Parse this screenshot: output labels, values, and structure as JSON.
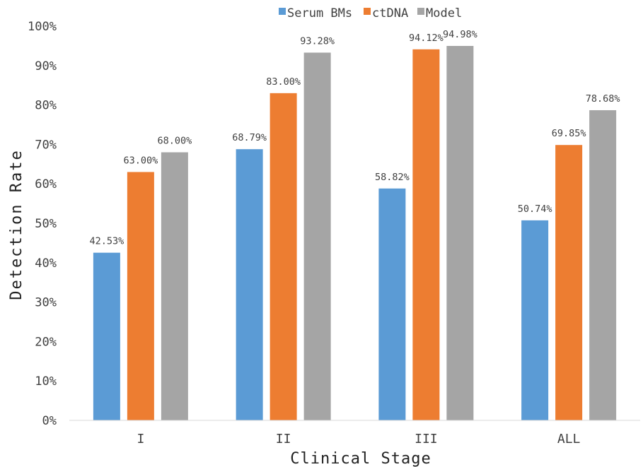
{
  "chart_data": {
    "type": "bar",
    "categories": [
      "I",
      "II",
      "III",
      "ALL"
    ],
    "series": [
      {
        "name": "Serum BMs",
        "values": [
          42.53,
          68.79,
          58.82,
          50.74
        ],
        "labels": [
          "42.53%",
          "68.79%",
          "58.82%",
          "50.74%"
        ],
        "color": "#5B9BD5"
      },
      {
        "name": "ctDNA",
        "values": [
          63.0,
          83.0,
          94.12,
          69.85
        ],
        "labels": [
          "63.00%",
          "83.00%",
          "94.12%",
          "69.85%"
        ],
        "color": "#ED7D31"
      },
      {
        "name": "Model",
        "values": [
          68.0,
          93.28,
          94.98,
          78.68
        ],
        "labels": [
          "68.00%",
          "93.28%",
          "94.98%",
          "78.68%"
        ],
        "color": "#A5A5A5"
      }
    ],
    "y_ticks": [
      "0%",
      "10%",
      "20%",
      "30%",
      "40%",
      "50%",
      "60%",
      "70%",
      "80%",
      "90%",
      "100%"
    ],
    "xlabel": "Clinical Stage",
    "ylabel": "Detection Rate",
    "ylim": [
      0,
      100
    ],
    "grid": false,
    "legend_position": "top"
  }
}
